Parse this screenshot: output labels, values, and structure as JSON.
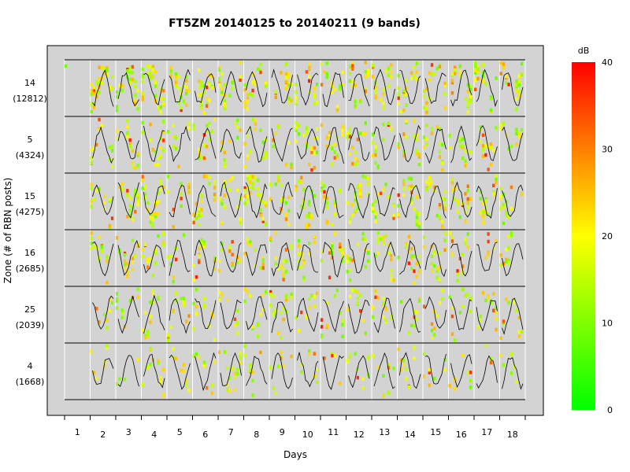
{
  "chart_data": {
    "type": "heatmap",
    "title": "FT5ZM 20140125 to 20140211 (9 bands)",
    "xlabel": "Days",
    "ylabel": "Zone (# of RBN posts)",
    "days": [
      "1",
      "2",
      "3",
      "4",
      "5",
      "6",
      "7",
      "8",
      "9",
      "10",
      "11",
      "12",
      "13",
      "14",
      "15",
      "16",
      "17",
      "18"
    ],
    "zones": [
      {
        "zone": "14",
        "posts": "(12812)"
      },
      {
        "zone": "5",
        "posts": "(4324)"
      },
      {
        "zone": "15",
        "posts": "(4275)"
      },
      {
        "zone": "16",
        "posts": "(2685)"
      },
      {
        "zone": "25",
        "posts": "(2039)"
      },
      {
        "zone": "4",
        "posts": "(1668)"
      }
    ],
    "legend": {
      "unit": "dB",
      "ticks": [
        "0",
        "10",
        "20",
        "30",
        "40"
      ],
      "range": [
        0,
        40
      ],
      "colors": [
        "#00ff00",
        "#ffff00",
        "#ff0000"
      ],
      "placement": "right"
    },
    "panel_background": "#d3d3d3"
  }
}
